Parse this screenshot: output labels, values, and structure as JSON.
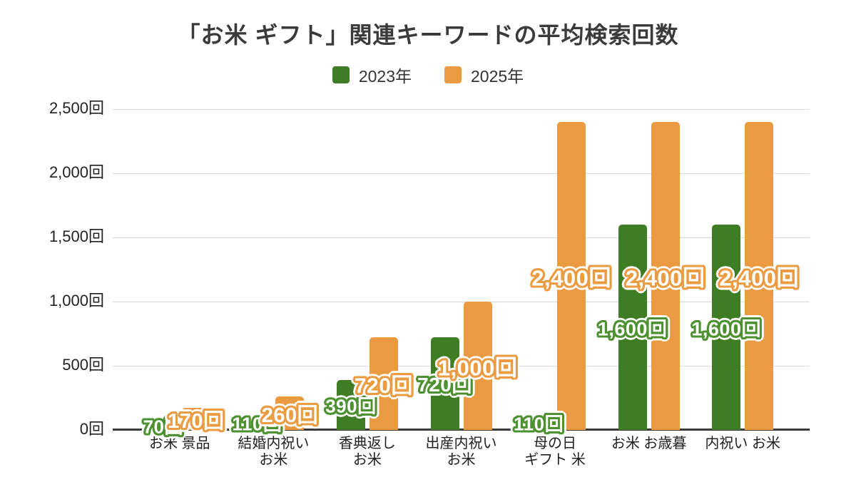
{
  "page": {
    "background": "#ffffff"
  },
  "chart_data": {
    "type": "bar",
    "title": "「お米 ギフト」関連キーワードの平均検索回数",
    "unit": "回",
    "categories": [
      "お米 景品",
      "結婚内祝い\nお米",
      "香典返し\nお米",
      "出産内祝い\nお米",
      "母の日\nギフト 米",
      "お米 お歳暮",
      "内祝い お米"
    ],
    "series": [
      {
        "name": "2023年",
        "color": "#3e7d24",
        "label_outline": "#4e9130",
        "values": [
          70,
          110,
          390,
          720,
          110,
          1600,
          1600
        ],
        "value_labels": [
          "70回",
          "110回",
          "390回",
          "720回",
          "110回",
          "1,600回",
          "1,600回"
        ],
        "label_sizes": [
          26,
          26,
          26,
          28,
          26,
          27,
          27
        ]
      },
      {
        "name": "2025年",
        "color": "#ea9a40",
        "label_outline": "#eb9c42",
        "values": [
          170,
          260,
          720,
          1000,
          2400,
          2400,
          2400
        ],
        "value_labels": [
          "170回",
          "260回",
          "720回",
          "1,000回",
          "2,400回",
          "2,400回",
          "2,400回"
        ],
        "label_sizes": [
          29,
          29,
          30,
          31,
          31,
          31,
          31
        ]
      }
    ],
    "yticks": [
      {
        "value": 0,
        "label": "0回"
      },
      {
        "value": 500,
        "label": "500回"
      },
      {
        "value": 1000,
        "label": "1,000回"
      },
      {
        "value": 1500,
        "label": "1,500回"
      },
      {
        "value": 2000,
        "label": "2,000回"
      },
      {
        "value": 2500,
        "label": "2,500回"
      }
    ],
    "ylim": [
      0,
      2500
    ],
    "xlabel": "",
    "ylabel": "",
    "grid": true,
    "legend_position": "top",
    "axis_colors": {
      "grid": "#d8d8d8",
      "baseline": "#3a3a3a",
      "tick_text": "#222222"
    }
  }
}
